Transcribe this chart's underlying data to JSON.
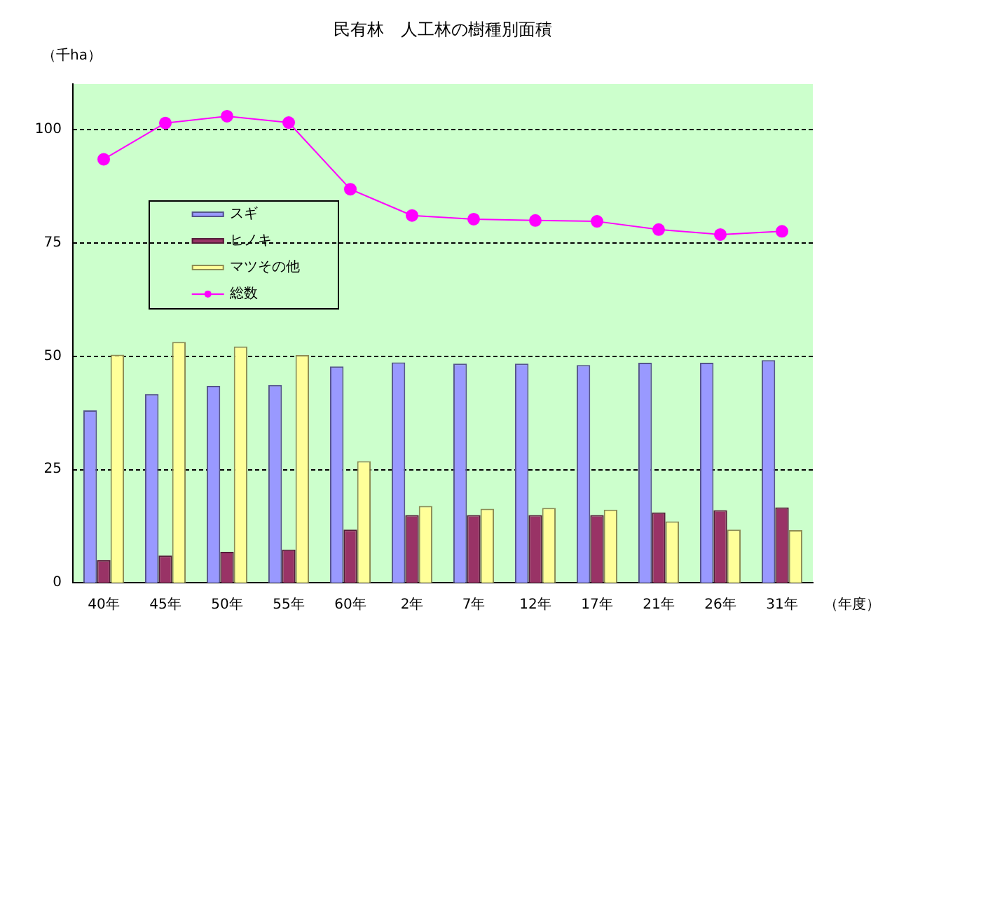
{
  "chart_data": {
    "type": "bar",
    "title": "民有林　人工林の樹種別面積",
    "ylabel": "（千ha）",
    "xlabel": "（年度）",
    "categories": [
      "40年",
      "45年",
      "50年",
      "55年",
      "60年",
      "2年",
      "7年",
      "12年",
      "17年",
      "21年",
      "26年",
      "31年"
    ],
    "series": [
      {
        "name": "スギ",
        "color": "#9999ff",
        "values": [
          38.0,
          41.6,
          43.4,
          43.6,
          47.7,
          48.6,
          48.3,
          48.3,
          48.0,
          48.5,
          48.5,
          49.1
        ]
      },
      {
        "name": "ヒノキ",
        "color": "#993366",
        "values": [
          5.0,
          6.0,
          6.8,
          7.3,
          11.7,
          14.9,
          14.9,
          14.9,
          14.9,
          15.5,
          16.0,
          16.6
        ]
      },
      {
        "name": "マツその他",
        "color": "#ffff99",
        "values": [
          50.3,
          53.1,
          52.1,
          50.2,
          26.8,
          16.9,
          16.3,
          16.5,
          16.1,
          13.5,
          11.7,
          11.6
        ]
      },
      {
        "name": "総数",
        "type": "line",
        "color": "#ff00ff",
        "values": [
          93.4,
          101.4,
          102.9,
          101.5,
          86.8,
          81.0,
          80.2,
          79.9,
          79.7,
          77.9,
          76.8,
          77.5
        ]
      }
    ],
    "ylim": [
      0,
      110
    ],
    "yticks": [
      0,
      25,
      50,
      75,
      100
    ],
    "grid": "y",
    "legend": "left",
    "marker": "circle"
  }
}
